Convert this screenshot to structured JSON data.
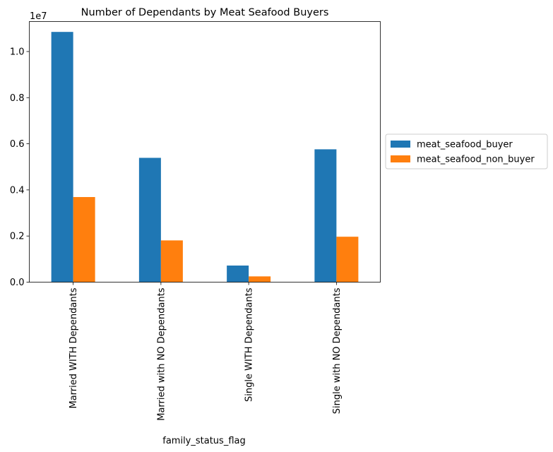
{
  "chart_data": {
    "type": "bar",
    "title": "Number of Dependants by Meat Seafood Buyers",
    "xlabel": "family_status_flag",
    "ylabel": "",
    "offset_text": "1e7",
    "categories": [
      "Married WITH Dependants",
      "Married with NO Dependants",
      "Single WITH Dependants",
      "Single with NO Dependants"
    ],
    "series": [
      {
        "name": "meat_seafood_buyer",
        "color": "#1f77b4",
        "values": [
          10850000,
          5390000,
          720000,
          5760000
        ]
      },
      {
        "name": "meat_seafood_non_buyer",
        "color": "#ff7f0e",
        "values": [
          3690000,
          1810000,
          250000,
          1970000
        ]
      }
    ],
    "ylim": [
      0,
      11300000
    ],
    "yticks": [
      0,
      2000000,
      4000000,
      6000000,
      8000000,
      10000000
    ],
    "ytick_labels": [
      "0.0",
      "0.2",
      "0.4",
      "0.6",
      "0.8",
      "1.0"
    ],
    "grid": false,
    "legend_position": "center-right-outside"
  }
}
